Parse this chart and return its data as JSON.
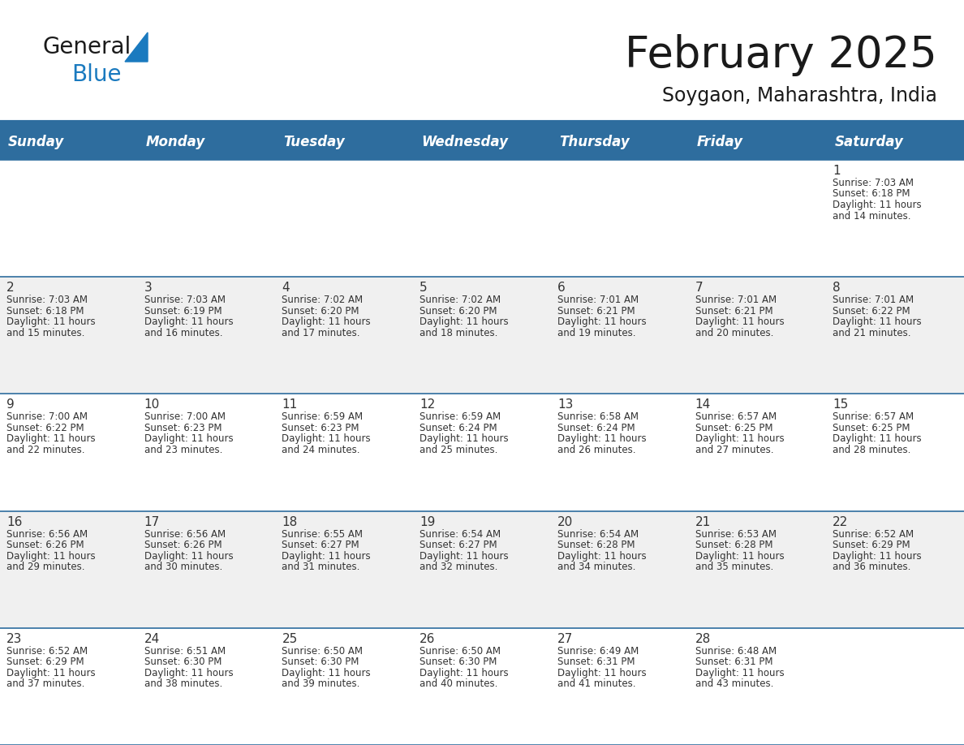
{
  "title": "February 2025",
  "subtitle": "Soygaon, Maharashtra, India",
  "header_bg": "#2E6D9E",
  "header_text_color": "#FFFFFF",
  "cell_bg_white": "#FFFFFF",
  "cell_bg_light": "#F0F0F0",
  "grid_line_color": "#2E6D9E",
  "day_names": [
    "Sunday",
    "Monday",
    "Tuesday",
    "Wednesday",
    "Thursday",
    "Friday",
    "Saturday"
  ],
  "days_data": [
    {
      "day": 1,
      "col": 6,
      "row": 0,
      "sunrise": "7:03 AM",
      "sunset": "6:18 PM",
      "daylight_h": "11 hours",
      "daylight_m": "and 14 minutes."
    },
    {
      "day": 2,
      "col": 0,
      "row": 1,
      "sunrise": "7:03 AM",
      "sunset": "6:18 PM",
      "daylight_h": "11 hours",
      "daylight_m": "and 15 minutes."
    },
    {
      "day": 3,
      "col": 1,
      "row": 1,
      "sunrise": "7:03 AM",
      "sunset": "6:19 PM",
      "daylight_h": "11 hours",
      "daylight_m": "and 16 minutes."
    },
    {
      "day": 4,
      "col": 2,
      "row": 1,
      "sunrise": "7:02 AM",
      "sunset": "6:20 PM",
      "daylight_h": "11 hours",
      "daylight_m": "and 17 minutes."
    },
    {
      "day": 5,
      "col": 3,
      "row": 1,
      "sunrise": "7:02 AM",
      "sunset": "6:20 PM",
      "daylight_h": "11 hours",
      "daylight_m": "and 18 minutes."
    },
    {
      "day": 6,
      "col": 4,
      "row": 1,
      "sunrise": "7:01 AM",
      "sunset": "6:21 PM",
      "daylight_h": "11 hours",
      "daylight_m": "and 19 minutes."
    },
    {
      "day": 7,
      "col": 5,
      "row": 1,
      "sunrise": "7:01 AM",
      "sunset": "6:21 PM",
      "daylight_h": "11 hours",
      "daylight_m": "and 20 minutes."
    },
    {
      "day": 8,
      "col": 6,
      "row": 1,
      "sunrise": "7:01 AM",
      "sunset": "6:22 PM",
      "daylight_h": "11 hours",
      "daylight_m": "and 21 minutes."
    },
    {
      "day": 9,
      "col": 0,
      "row": 2,
      "sunrise": "7:00 AM",
      "sunset": "6:22 PM",
      "daylight_h": "11 hours",
      "daylight_m": "and 22 minutes."
    },
    {
      "day": 10,
      "col": 1,
      "row": 2,
      "sunrise": "7:00 AM",
      "sunset": "6:23 PM",
      "daylight_h": "11 hours",
      "daylight_m": "and 23 minutes."
    },
    {
      "day": 11,
      "col": 2,
      "row": 2,
      "sunrise": "6:59 AM",
      "sunset": "6:23 PM",
      "daylight_h": "11 hours",
      "daylight_m": "and 24 minutes."
    },
    {
      "day": 12,
      "col": 3,
      "row": 2,
      "sunrise": "6:59 AM",
      "sunset": "6:24 PM",
      "daylight_h": "11 hours",
      "daylight_m": "and 25 minutes."
    },
    {
      "day": 13,
      "col": 4,
      "row": 2,
      "sunrise": "6:58 AM",
      "sunset": "6:24 PM",
      "daylight_h": "11 hours",
      "daylight_m": "and 26 minutes."
    },
    {
      "day": 14,
      "col": 5,
      "row": 2,
      "sunrise": "6:57 AM",
      "sunset": "6:25 PM",
      "daylight_h": "11 hours",
      "daylight_m": "and 27 minutes."
    },
    {
      "day": 15,
      "col": 6,
      "row": 2,
      "sunrise": "6:57 AM",
      "sunset": "6:25 PM",
      "daylight_h": "11 hours",
      "daylight_m": "and 28 minutes."
    },
    {
      "day": 16,
      "col": 0,
      "row": 3,
      "sunrise": "6:56 AM",
      "sunset": "6:26 PM",
      "daylight_h": "11 hours",
      "daylight_m": "and 29 minutes."
    },
    {
      "day": 17,
      "col": 1,
      "row": 3,
      "sunrise": "6:56 AM",
      "sunset": "6:26 PM",
      "daylight_h": "11 hours",
      "daylight_m": "and 30 minutes."
    },
    {
      "day": 18,
      "col": 2,
      "row": 3,
      "sunrise": "6:55 AM",
      "sunset": "6:27 PM",
      "daylight_h": "11 hours",
      "daylight_m": "and 31 minutes."
    },
    {
      "day": 19,
      "col": 3,
      "row": 3,
      "sunrise": "6:54 AM",
      "sunset": "6:27 PM",
      "daylight_h": "11 hours",
      "daylight_m": "and 32 minutes."
    },
    {
      "day": 20,
      "col": 4,
      "row": 3,
      "sunrise": "6:54 AM",
      "sunset": "6:28 PM",
      "daylight_h": "11 hours",
      "daylight_m": "and 34 minutes."
    },
    {
      "day": 21,
      "col": 5,
      "row": 3,
      "sunrise": "6:53 AM",
      "sunset": "6:28 PM",
      "daylight_h": "11 hours",
      "daylight_m": "and 35 minutes."
    },
    {
      "day": 22,
      "col": 6,
      "row": 3,
      "sunrise": "6:52 AM",
      "sunset": "6:29 PM",
      "daylight_h": "11 hours",
      "daylight_m": "and 36 minutes."
    },
    {
      "day": 23,
      "col": 0,
      "row": 4,
      "sunrise": "6:52 AM",
      "sunset": "6:29 PM",
      "daylight_h": "11 hours",
      "daylight_m": "and 37 minutes."
    },
    {
      "day": 24,
      "col": 1,
      "row": 4,
      "sunrise": "6:51 AM",
      "sunset": "6:30 PM",
      "daylight_h": "11 hours",
      "daylight_m": "and 38 minutes."
    },
    {
      "day": 25,
      "col": 2,
      "row": 4,
      "sunrise": "6:50 AM",
      "sunset": "6:30 PM",
      "daylight_h": "11 hours",
      "daylight_m": "and 39 minutes."
    },
    {
      "day": 26,
      "col": 3,
      "row": 4,
      "sunrise": "6:50 AM",
      "sunset": "6:30 PM",
      "daylight_h": "11 hours",
      "daylight_m": "and 40 minutes."
    },
    {
      "day": 27,
      "col": 4,
      "row": 4,
      "sunrise": "6:49 AM",
      "sunset": "6:31 PM",
      "daylight_h": "11 hours",
      "daylight_m": "and 41 minutes."
    },
    {
      "day": 28,
      "col": 5,
      "row": 4,
      "sunrise": "6:48 AM",
      "sunset": "6:31 PM",
      "daylight_h": "11 hours",
      "daylight_m": "and 43 minutes."
    }
  ],
  "num_rows": 5,
  "num_cols": 7,
  "logo_text_general": "General",
  "logo_text_blue": "Blue",
  "logo_general_color": "#1a1a1a",
  "logo_blue_color": "#1a7abf",
  "logo_triangle_color": "#1a7abf",
  "title_color": "#1a1a1a",
  "subtitle_color": "#1a1a1a",
  "day_number_color": "#333333",
  "cell_text_color": "#333333"
}
